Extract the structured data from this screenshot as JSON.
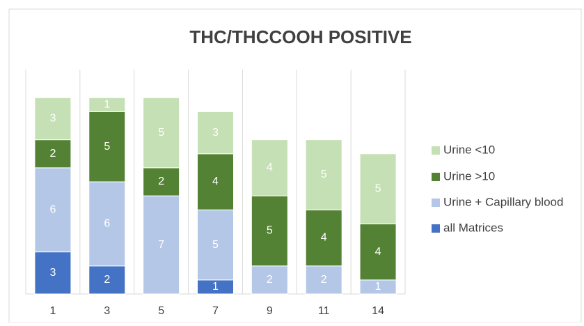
{
  "chart_data": {
    "type": "stacked_bar",
    "title": "THC/THCCOOH POSITIVE",
    "categories": [
      "1",
      "3",
      "5",
      "7",
      "9",
      "11",
      "14"
    ],
    "series": [
      {
        "name": "all Matrices",
        "color": "#4472c4",
        "values": [
          3,
          2,
          null,
          1,
          null,
          null,
          null
        ]
      },
      {
        "name": "Urine + Capillary blood",
        "color": "#b4c7e7",
        "values": [
          6,
          6,
          7,
          5,
          2,
          2,
          1
        ]
      },
      {
        "name": "Urine >10",
        "color": "#548235",
        "values": [
          2,
          5,
          2,
          4,
          5,
          4,
          4
        ]
      },
      {
        "name": "Urine <10",
        "color": "#c5e0b4",
        "values": [
          3,
          1,
          5,
          3,
          4,
          5,
          5
        ]
      }
    ],
    "ylim": [
      0,
      16
    ],
    "legend": "right"
  }
}
